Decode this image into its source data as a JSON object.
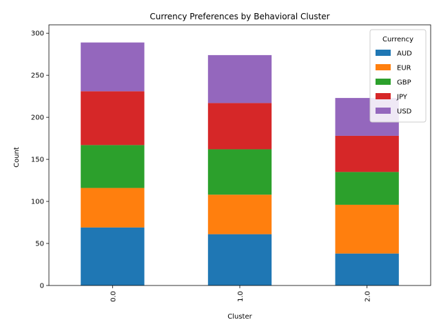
{
  "chart_data": {
    "type": "bar",
    "stacked": true,
    "title": "Currency Preferences by Behavioral Cluster",
    "xlabel": "Cluster",
    "ylabel": "Count",
    "categories": [
      "0.0",
      "1.0",
      "2.0"
    ],
    "ylim": [
      0,
      300
    ],
    "yticks": [
      "0",
      "50",
      "100",
      "150",
      "200",
      "250",
      "300"
    ],
    "grid": false,
    "legend": {
      "title": "Currency",
      "placement": "top-right"
    },
    "series": [
      {
        "name": "AUD",
        "color": "#1f77b4",
        "values": [
          69,
          61,
          38
        ]
      },
      {
        "name": "EUR",
        "color": "#ff7f0e",
        "values": [
          47,
          47,
          58
        ]
      },
      {
        "name": "GBP",
        "color": "#2ca02c",
        "values": [
          51,
          54,
          39
        ]
      },
      {
        "name": "JPY",
        "color": "#d62728",
        "values": [
          64,
          55,
          43
        ]
      },
      {
        "name": "USD",
        "color": "#9467bd",
        "values": [
          58,
          57,
          45
        ]
      }
    ]
  }
}
